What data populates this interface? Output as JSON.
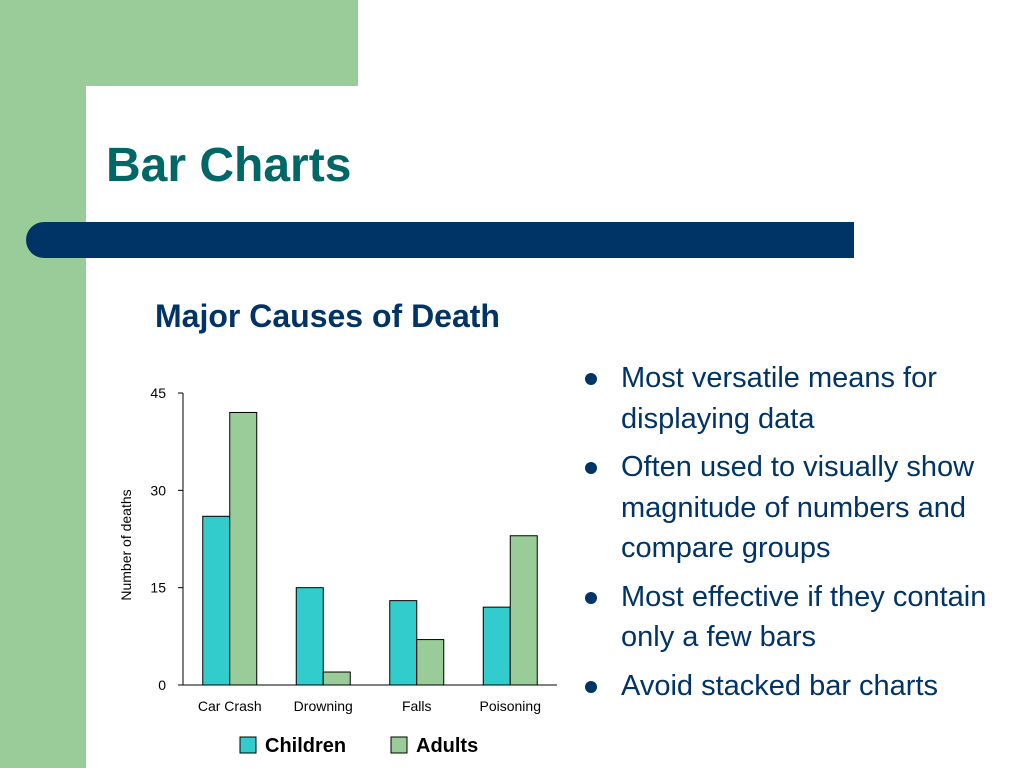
{
  "slide": {
    "title": "Bar Charts",
    "bullets": [
      "Most versatile means for displaying data",
      "Often used to visually show magnitude of numbers and compare groups",
      "Most effective if they contain only a few bars",
      "Avoid stacked bar charts"
    ]
  },
  "colors": {
    "green_frame": "#99cc99",
    "title_bar": "#003366",
    "title_text": "#006666",
    "body_text": "#003366",
    "children_bar": "#33cccc",
    "adults_bar": "#99cc99"
  },
  "chart_data": {
    "type": "bar",
    "title": "Major Causes of Death",
    "xlabel": "",
    "ylabel": "Number of deaths",
    "categories": [
      "Car Crash",
      "Drowning",
      "Falls",
      "Poisoning"
    ],
    "series": [
      {
        "name": "Children",
        "values": [
          26,
          15,
          13,
          12
        ],
        "color": "#33cccc"
      },
      {
        "name": "Adults",
        "values": [
          42,
          2,
          7,
          23
        ],
        "color": "#99cc99"
      }
    ],
    "ylim": [
      0,
      45
    ],
    "yticks": [
      0,
      15,
      30,
      45
    ],
    "grid": false,
    "legend": "bottom"
  }
}
